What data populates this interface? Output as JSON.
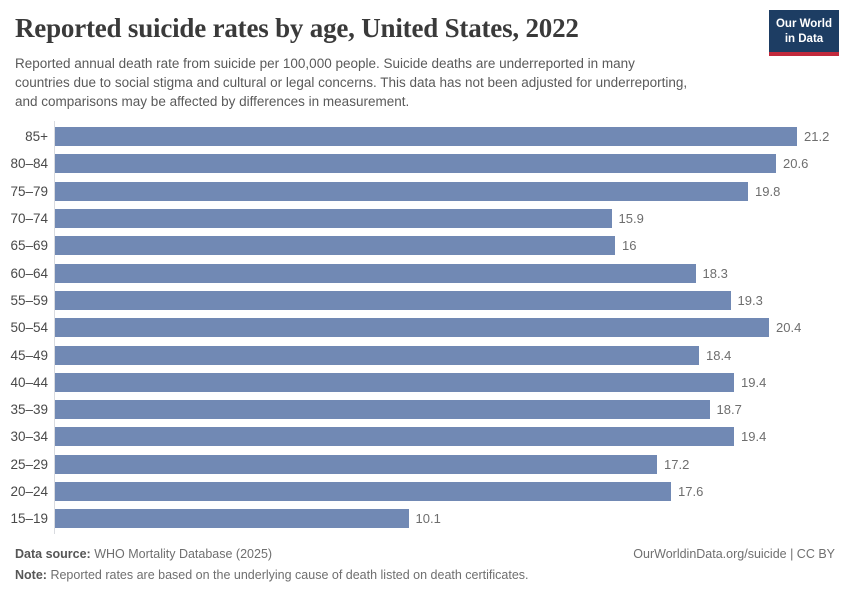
{
  "header": {
    "logo": {
      "line1": "Our World",
      "line2": "in Data",
      "bg_color": "#1d3d63",
      "accent_color": "#c2293c",
      "text_color": "#ffffff"
    }
  },
  "chart_data": {
    "type": "bar",
    "orientation": "horizontal",
    "title": "Reported suicide rates by age, United States, 2022",
    "subtitle": "Reported annual death rate from suicide per 100,000 people. Suicide deaths are underreported in many countries due to social stigma and cultural or legal concerns. This data has not been adjusted for underreporting, and comparisons may be affected by differences in measurement.",
    "categories": [
      "85+",
      "80–84",
      "75–79",
      "70–74",
      "65–69",
      "60–64",
      "55–59",
      "50–54",
      "45–49",
      "40–44",
      "35–39",
      "30–34",
      "25–29",
      "20–24",
      "15–19"
    ],
    "values": [
      21.2,
      20.6,
      19.8,
      15.9,
      16,
      18.3,
      19.3,
      20.4,
      18.4,
      19.4,
      18.7,
      19.4,
      17.2,
      17.6,
      10.1
    ],
    "value_labels": [
      "21.2",
      "20.6",
      "19.8",
      "15.9",
      "16",
      "18.3",
      "19.3",
      "20.4",
      "18.4",
      "19.4",
      "18.7",
      "19.4",
      "17.2",
      "17.6",
      "10.1"
    ],
    "xlabel": "",
    "ylabel": "",
    "xlim": [
      0,
      21.2
    ],
    "grid": false,
    "legend": false,
    "bar_color": "#7189b4",
    "axis_color": "#d9dbe0"
  },
  "footer": {
    "datasource_label": "Data source:",
    "datasource_value": "WHO Mortality Database (2025)",
    "note_label": "Note:",
    "note_value": "Reported rates are based on the underlying cause of death listed on death certificates.",
    "attribution": "OurWorldinData.org/suicide | CC BY"
  }
}
